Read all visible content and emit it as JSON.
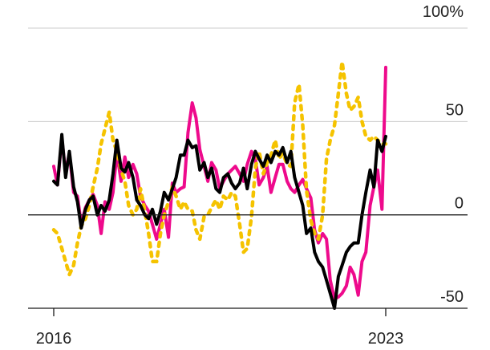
{
  "chart_data": {
    "type": "line",
    "title": "",
    "xlabel": "",
    "ylabel": "",
    "ylim": [
      -50,
      100
    ],
    "xlim": [
      2016,
      2024.5
    ],
    "y_ticks": [
      {
        "value": 100,
        "label": "100%"
      },
      {
        "value": 50,
        "label": "50"
      },
      {
        "value": 0,
        "label": "0"
      },
      {
        "value": -50,
        "label": "-50"
      }
    ],
    "x_ticks": [
      {
        "value": 2016,
        "label": "2016"
      },
      {
        "value": 2023,
        "label": "2023"
      }
    ],
    "grid": "horizontal",
    "legend": "none",
    "series": [
      {
        "color": "#ee0a8c",
        "style": "solid",
        "x": [
          2016.0,
          2016.08,
          2016.17,
          2016.25,
          2016.33,
          2016.42,
          2016.5,
          2016.58,
          2016.67,
          2016.75,
          2016.83,
          2016.92,
          2017.0,
          2017.08,
          2017.17,
          2017.25,
          2017.33,
          2017.42,
          2017.5,
          2017.58,
          2017.67,
          2017.75,
          2017.83,
          2017.92,
          2018.0,
          2018.08,
          2018.17,
          2018.25,
          2018.33,
          2018.42,
          2018.5,
          2018.58,
          2018.67,
          2018.75,
          2018.83,
          2018.92,
          2019.0,
          2019.08,
          2019.17,
          2019.25,
          2019.33,
          2019.42,
          2019.5,
          2019.58,
          2019.67,
          2019.75,
          2019.83,
          2019.92,
          2020.0,
          2020.08,
          2020.17,
          2020.25,
          2020.33,
          2020.42,
          2020.5,
          2020.58,
          2020.67,
          2020.75,
          2020.83,
          2020.92,
          2021.0,
          2021.08,
          2021.17,
          2021.25,
          2021.33,
          2021.42,
          2021.5,
          2021.58,
          2021.67,
          2021.75,
          2021.83,
          2021.92,
          2022.0,
          2022.08,
          2022.17,
          2022.25,
          2022.33,
          2022.42,
          2022.5,
          2022.58,
          2022.67,
          2022.75,
          2022.83,
          2022.92,
          2023.0
        ],
        "y": [
          26,
          16,
          41,
          23,
          33,
          12,
          10,
          -5,
          4,
          8,
          11,
          5,
          -10,
          7,
          3,
          12,
          33,
          18,
          31,
          20,
          27,
          22,
          10,
          5,
          2,
          -5,
          -13,
          -5,
          3,
          -12,
          17,
          12,
          14,
          15,
          44,
          60,
          52,
          35,
          26,
          18,
          28,
          24,
          14,
          18,
          22,
          24,
          26,
          22,
          18,
          27,
          34,
          30,
          16,
          20,
          26,
          12,
          20,
          27,
          27,
          18,
          14,
          12,
          16,
          19,
          14,
          9,
          -8,
          -15,
          -10,
          -13,
          -35,
          -45,
          -44,
          -42,
          -38,
          -28,
          -32,
          -43,
          -25,
          -20,
          5,
          15,
          24,
          3,
          79
        ]
      },
      {
        "color": "#f5c300",
        "style": "dashed",
        "x": [
          2016.0,
          2016.08,
          2016.17,
          2016.25,
          2016.33,
          2016.42,
          2016.5,
          2016.58,
          2016.67,
          2016.75,
          2016.83,
          2016.92,
          2017.0,
          2017.08,
          2017.17,
          2017.25,
          2017.33,
          2017.42,
          2017.5,
          2017.58,
          2017.67,
          2017.75,
          2017.83,
          2017.92,
          2018.0,
          2018.08,
          2018.17,
          2018.25,
          2018.33,
          2018.42,
          2018.5,
          2018.58,
          2018.67,
          2018.75,
          2018.83,
          2018.92,
          2019.0,
          2019.08,
          2019.17,
          2019.25,
          2019.33,
          2019.42,
          2019.5,
          2019.58,
          2019.67,
          2019.75,
          2019.83,
          2019.92,
          2020.0,
          2020.08,
          2020.17,
          2020.25,
          2020.33,
          2020.42,
          2020.5,
          2020.58,
          2020.67,
          2020.75,
          2020.83,
          2020.92,
          2021.0,
          2021.08,
          2021.17,
          2021.25,
          2021.33,
          2021.42,
          2021.5,
          2021.58,
          2021.67,
          2021.75,
          2021.83,
          2021.92,
          2022.0,
          2022.08,
          2022.17,
          2022.25,
          2022.33,
          2022.42,
          2022.5,
          2022.58,
          2022.67,
          2022.75,
          2022.83,
          2022.92,
          2023.0
        ],
        "y": [
          -8,
          -10,
          -18,
          -25,
          -32,
          -27,
          -15,
          -6,
          -2,
          5,
          15,
          25,
          38,
          46,
          55,
          40,
          34,
          24,
          18,
          5,
          0,
          3,
          14,
          2,
          -10,
          -25,
          -25,
          -10,
          0,
          7,
          15,
          10,
          3,
          7,
          3,
          2,
          -8,
          -13,
          -1,
          0,
          4,
          8,
          3,
          10,
          8,
          12,
          10,
          -5,
          -20,
          -18,
          -1,
          25,
          34,
          22,
          28,
          32,
          40,
          30,
          33,
          27,
          26,
          60,
          70,
          48,
          13,
          -3,
          -10,
          -13,
          0,
          30,
          40,
          48,
          65,
          82,
          65,
          56,
          58,
          63,
          50,
          42,
          40,
          42,
          40,
          38,
          38
        ]
      },
      {
        "color": "#000000",
        "style": "solid",
        "x": [
          2016.0,
          2016.08,
          2016.17,
          2016.25,
          2016.33,
          2016.42,
          2016.5,
          2016.58,
          2016.67,
          2016.75,
          2016.83,
          2016.92,
          2017.0,
          2017.08,
          2017.17,
          2017.25,
          2017.33,
          2017.42,
          2017.5,
          2017.58,
          2017.67,
          2017.75,
          2017.83,
          2017.92,
          2018.0,
          2018.08,
          2018.17,
          2018.25,
          2018.33,
          2018.42,
          2018.5,
          2018.58,
          2018.67,
          2018.75,
          2018.83,
          2018.92,
          2019.0,
          2019.08,
          2019.17,
          2019.25,
          2019.33,
          2019.42,
          2019.5,
          2019.58,
          2019.67,
          2019.75,
          2019.83,
          2019.92,
          2020.0,
          2020.08,
          2020.17,
          2020.25,
          2020.33,
          2020.42,
          2020.5,
          2020.58,
          2020.67,
          2020.75,
          2020.83,
          2020.92,
          2021.0,
          2021.08,
          2021.17,
          2021.25,
          2021.33,
          2021.42,
          2021.5,
          2021.58,
          2021.67,
          2021.75,
          2021.83,
          2021.92,
          2022.0,
          2022.08,
          2022.17,
          2022.25,
          2022.33,
          2022.42,
          2022.5,
          2022.58,
          2022.67,
          2022.75,
          2022.83,
          2022.92,
          2023.0
        ],
        "y": [
          18,
          16,
          43,
          20,
          34,
          15,
          7,
          -7,
          3,
          8,
          10,
          0,
          5,
          2,
          8,
          22,
          40,
          25,
          23,
          28,
          20,
          8,
          5,
          0,
          -2,
          3,
          -5,
          2,
          12,
          8,
          14,
          20,
          32,
          32,
          40,
          36,
          37,
          24,
          28,
          20,
          25,
          14,
          12,
          20,
          22,
          17,
          14,
          17,
          25,
          14,
          27,
          34,
          30,
          26,
          32,
          28,
          34,
          32,
          36,
          28,
          34,
          20,
          12,
          5,
          -10,
          -7,
          -20,
          -25,
          -28,
          -35,
          -42,
          -50,
          -33,
          -27,
          -20,
          -17,
          -15,
          -15,
          0,
          12,
          24,
          15,
          40,
          34,
          42
        ]
      }
    ]
  }
}
